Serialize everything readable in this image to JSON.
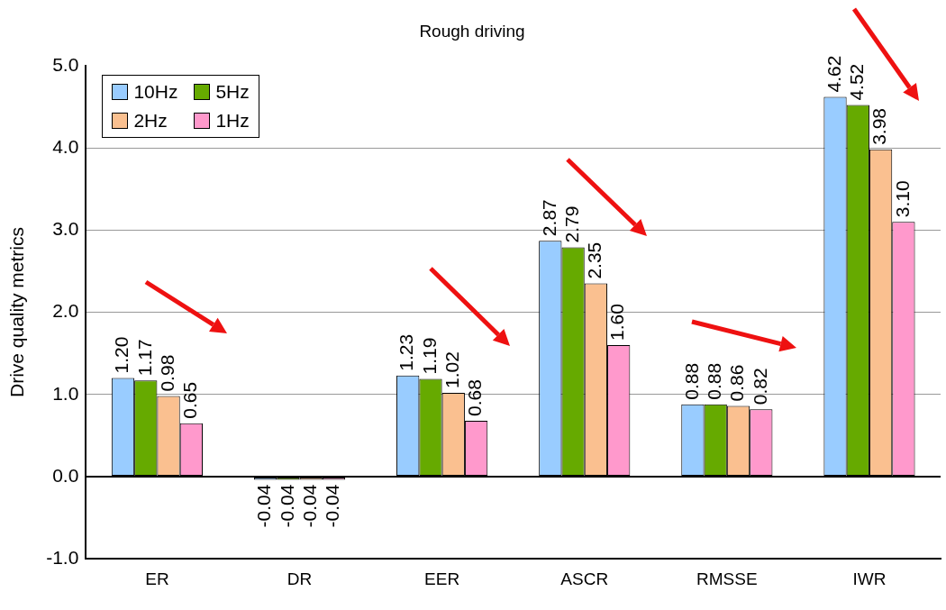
{
  "chart_data": {
    "type": "bar",
    "title": "Rough driving",
    "ylabel": "Drive quality metrics",
    "categories": [
      "ER",
      "DR",
      "EER",
      "ASCR",
      "RMSSE",
      "IWR"
    ],
    "series": [
      {
        "name": "10Hz",
        "color": "#99ccff",
        "values": [
          1.2,
          -0.04,
          1.23,
          2.87,
          0.88,
          4.62
        ],
        "value_labels": [
          "1.20",
          "-0.04",
          "1.23",
          "2.87",
          "0.88",
          "4.62"
        ]
      },
      {
        "name": "5Hz",
        "color": "#66aa00",
        "values": [
          1.17,
          -0.04,
          1.19,
          2.79,
          0.88,
          4.52
        ],
        "value_labels": [
          "1.17",
          "-0.04",
          "1.19",
          "2.79",
          "0.88",
          "4.52"
        ]
      },
      {
        "name": "2Hz",
        "color": "#fac090",
        "values": [
          0.98,
          -0.04,
          1.02,
          2.35,
          0.86,
          3.98
        ],
        "value_labels": [
          "0.98",
          "-0.04",
          "1.02",
          "2.35",
          "0.86",
          "3.98"
        ]
      },
      {
        "name": "1Hz",
        "color": "#ff99cc",
        "values": [
          0.65,
          -0.04,
          0.68,
          1.6,
          0.82,
          3.1
        ],
        "value_labels": [
          "0.65",
          "-0.04",
          "0.68",
          "1.60",
          "0.82",
          "3.10"
        ]
      }
    ],
    "ylim": [
      -1,
      5
    ],
    "yticks": [
      {
        "value": -1,
        "label": "-1.0"
      },
      {
        "value": 0,
        "label": "0.0"
      },
      {
        "value": 1,
        "label": "1.0"
      },
      {
        "value": 2,
        "label": "2.0"
      },
      {
        "value": 3,
        "label": "3.0"
      },
      {
        "value": 4,
        "label": "4.0"
      },
      {
        "value": 5,
        "label": "5.0"
      }
    ],
    "grid": "y",
    "legend": "top left"
  }
}
